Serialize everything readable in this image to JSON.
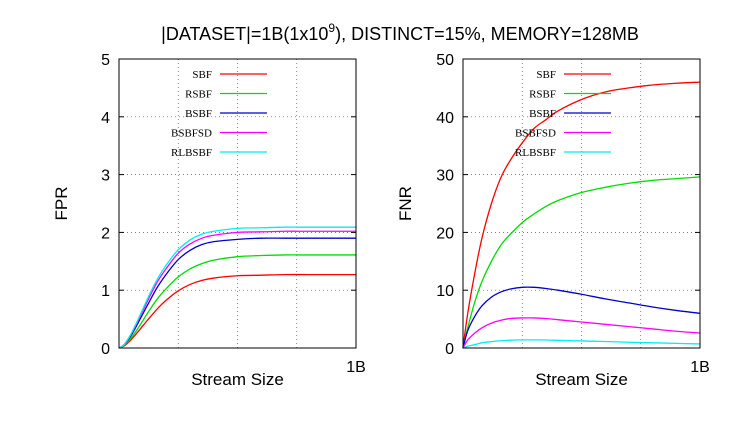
{
  "title": {
    "prefix": "|DATASET|=1B(1x10",
    "superscript": "9",
    "suffix": "), DISTINCT=15%, MEMORY=128MB"
  },
  "colors": {
    "SBF": "#ff0000",
    "RSBF": "#00dd00",
    "BSBF": "#0000cc",
    "BSBFSD": "#ff00ff",
    "RLBSBF": "#00eeee",
    "axis": "#000000",
    "grid": "#555555"
  },
  "chart_data": [
    {
      "type": "line",
      "xlabel": "Stream Size",
      "ylabel": "FPR",
      "xlim": [
        0,
        1
      ],
      "x_tick_end_label": "1B",
      "ylim": [
        0,
        5
      ],
      "y_ticks": [
        0,
        1,
        2,
        3,
        4,
        5
      ],
      "grid": true,
      "legend_position": "top-left",
      "x": [
        0,
        0.02,
        0.05,
        0.08,
        0.12,
        0.16,
        0.2,
        0.25,
        0.3,
        0.35,
        0.4,
        0.5,
        0.6,
        0.7,
        0.8,
        0.9,
        1.0
      ],
      "series": [
        {
          "name": "SBF",
          "values": [
            0,
            0.03,
            0.14,
            0.28,
            0.48,
            0.67,
            0.83,
            0.99,
            1.1,
            1.17,
            1.21,
            1.25,
            1.26,
            1.27,
            1.27,
            1.27,
            1.27
          ]
        },
        {
          "name": "RSBF",
          "values": [
            0,
            0.04,
            0.17,
            0.34,
            0.6,
            0.84,
            1.03,
            1.23,
            1.37,
            1.46,
            1.52,
            1.58,
            1.6,
            1.61,
            1.61,
            1.61,
            1.61
          ]
        },
        {
          "name": "BSBF",
          "values": [
            0,
            0.05,
            0.21,
            0.43,
            0.74,
            1.04,
            1.28,
            1.53,
            1.69,
            1.79,
            1.84,
            1.88,
            1.9,
            1.9,
            1.9,
            1.9,
            1.9
          ]
        },
        {
          "name": "BSBFSD",
          "values": [
            0,
            0.05,
            0.23,
            0.47,
            0.81,
            1.13,
            1.38,
            1.64,
            1.8,
            1.9,
            1.95,
            2.0,
            2.01,
            2.02,
            2.02,
            2.02,
            2.02
          ]
        },
        {
          "name": "RLBSBF",
          "values": [
            0,
            0.05,
            0.24,
            0.49,
            0.85,
            1.18,
            1.44,
            1.7,
            1.87,
            1.97,
            2.02,
            2.07,
            2.08,
            2.09,
            2.09,
            2.09,
            2.09
          ]
        }
      ]
    },
    {
      "type": "line",
      "xlabel": "Stream Size",
      "ylabel": "FNR",
      "xlim": [
        0,
        1
      ],
      "x_tick_end_label": "1B",
      "ylim": [
        0,
        50
      ],
      "y_ticks": [
        0,
        10,
        20,
        30,
        40,
        50
      ],
      "grid": true,
      "legend_position": "top-left",
      "x": [
        0,
        0.02,
        0.05,
        0.08,
        0.12,
        0.16,
        0.2,
        0.25,
        0.3,
        0.35,
        0.4,
        0.5,
        0.6,
        0.7,
        0.8,
        0.9,
        1.0
      ],
      "series": [
        {
          "name": "SBF",
          "values": [
            0,
            6,
            13,
            19,
            25,
            29.5,
            32.5,
            35.5,
            38,
            39.5,
            41,
            43,
            44.3,
            45,
            45.5,
            45.8,
            46
          ]
        },
        {
          "name": "RSBF",
          "values": [
            0,
            3.5,
            8,
            11.5,
            15,
            17.8,
            19.7,
            21.7,
            23.2,
            24.5,
            25.5,
            26.9,
            27.8,
            28.5,
            29,
            29.3,
            29.6
          ]
        },
        {
          "name": "BSBF",
          "values": [
            0,
            3,
            5.5,
            7.3,
            8.8,
            9.7,
            10.2,
            10.5,
            10.5,
            10.3,
            10,
            9.3,
            8.5,
            7.8,
            7.1,
            6.5,
            6
          ]
        },
        {
          "name": "BSBFSD",
          "values": [
            0,
            1.4,
            2.6,
            3.5,
            4.3,
            4.8,
            5.1,
            5.2,
            5.2,
            5.1,
            4.9,
            4.5,
            4.1,
            3.7,
            3.3,
            2.9,
            2.6
          ]
        },
        {
          "name": "RLBSBF",
          "values": [
            0,
            0.3,
            0.6,
            0.9,
            1.1,
            1.25,
            1.35,
            1.4,
            1.4,
            1.38,
            1.33,
            1.22,
            1.12,
            1.0,
            0.9,
            0.8,
            0.7
          ]
        }
      ]
    }
  ]
}
